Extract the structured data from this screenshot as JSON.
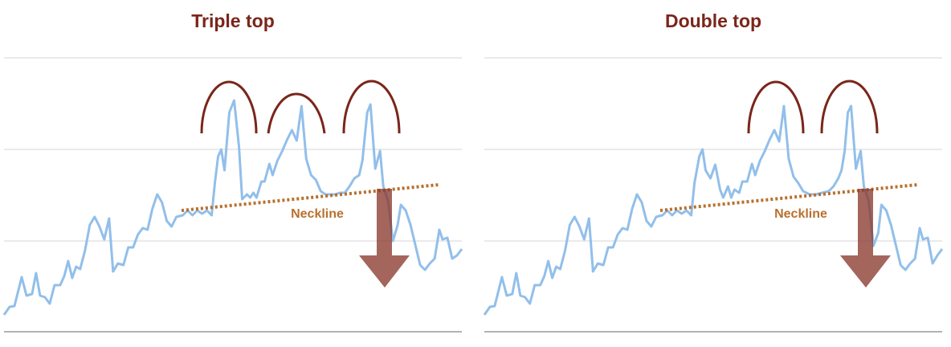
{
  "chart_data": [
    {
      "type": "line",
      "title": "Triple top",
      "annotation": "Neckline",
      "color": "#92bfea",
      "grid": true,
      "xlim": [
        0,
        571
      ],
      "ylim": [
        0,
        341
      ],
      "yticks": [
        0,
        113,
        227,
        341
      ],
      "x": [
        0,
        7,
        13,
        22,
        28,
        35,
        40,
        45,
        51,
        57,
        63,
        70,
        75,
        80,
        85,
        90,
        95,
        101,
        107,
        113,
        119,
        125,
        131,
        136,
        142,
        149,
        155,
        161,
        167,
        173,
        179,
        185,
        191,
        197,
        203,
        209,
        215,
        223,
        229,
        235,
        241,
        247,
        253,
        259,
        263,
        267,
        271,
        275,
        281,
        287,
        293,
        297,
        303,
        307,
        311,
        315,
        321,
        325,
        331,
        335,
        341,
        347,
        353,
        359,
        365,
        371,
        377,
        383,
        389,
        395,
        401,
        407,
        413,
        419,
        425,
        431,
        437,
        443,
        447,
        453,
        457,
        463,
        469,
        473,
        479,
        485,
        491,
        495,
        501,
        507,
        513,
        519,
        525,
        531,
        537,
        543,
        547,
        553,
        559,
        565,
        571
      ],
      "values": [
        21,
        31,
        32,
        68,
        45,
        47,
        73,
        45,
        43,
        35,
        58,
        58,
        69,
        88,
        67,
        81,
        78,
        101,
        133,
        143,
        131,
        115,
        141,
        75,
        85,
        83,
        105,
        105,
        121,
        129,
        127,
        153,
        171,
        161,
        138,
        131,
        143,
        145,
        151,
        145,
        151,
        147,
        151,
        145,
        185,
        218,
        227,
        201,
        273,
        288,
        231,
        165,
        171,
        167,
        173,
        167,
        187,
        187,
        209,
        195,
        213,
        225,
        239,
        251,
        238,
        281,
        215,
        195,
        189,
        175,
        171,
        171,
        171,
        173,
        173,
        181,
        191,
        195,
        213,
        273,
        283,
        203,
        225,
        181,
        163,
        113,
        133,
        158,
        151,
        133,
        108,
        83,
        77,
        85,
        91,
        127,
        115,
        117,
        91,
        95,
        103
      ]
    },
    {
      "type": "line",
      "title": "Double top",
      "annotation": "Neckline",
      "color": "#92bfea",
      "grid": true,
      "xlim": [
        0,
        573
      ],
      "ylim": [
        0,
        341
      ],
      "yticks": [
        0,
        113,
        227,
        341
      ],
      "x": [
        0,
        7,
        13,
        22,
        28,
        35,
        40,
        45,
        51,
        57,
        63,
        70,
        75,
        80,
        85,
        90,
        95,
        101,
        107,
        113,
        119,
        125,
        131,
        136,
        142,
        149,
        155,
        161,
        167,
        173,
        179,
        185,
        191,
        197,
        203,
        209,
        215,
        223,
        229,
        235,
        241,
        247,
        253,
        259,
        263,
        269,
        273,
        277,
        283,
        289,
        295,
        299,
        305,
        309,
        313,
        319,
        323,
        329,
        335,
        339,
        345,
        351,
        357,
        363,
        369,
        375,
        381,
        387,
        393,
        399,
        407,
        415,
        423,
        431,
        437,
        443,
        447,
        451,
        455,
        459,
        465,
        471,
        475,
        481,
        487,
        493,
        497,
        503,
        509,
        515,
        521,
        527,
        533,
        539,
        545,
        549,
        555,
        561,
        567,
        573
      ],
      "values": [
        21,
        31,
        32,
        68,
        45,
        47,
        73,
        45,
        43,
        35,
        58,
        58,
        69,
        88,
        67,
        81,
        78,
        101,
        133,
        143,
        131,
        115,
        141,
        75,
        85,
        83,
        105,
        105,
        121,
        129,
        127,
        153,
        171,
        161,
        138,
        131,
        143,
        145,
        151,
        145,
        151,
        147,
        151,
        145,
        185,
        218,
        227,
        201,
        191,
        208,
        177,
        167,
        181,
        167,
        177,
        173,
        187,
        187,
        209,
        195,
        213,
        225,
        239,
        251,
        237,
        281,
        215,
        193,
        185,
        175,
        171,
        171,
        173,
        175,
        181,
        191,
        201,
        225,
        273,
        281,
        203,
        225,
        181,
        163,
        107,
        123,
        158,
        151,
        133,
        108,
        83,
        77,
        85,
        91,
        129,
        115,
        117,
        85,
        95,
        103
      ]
    }
  ]
}
